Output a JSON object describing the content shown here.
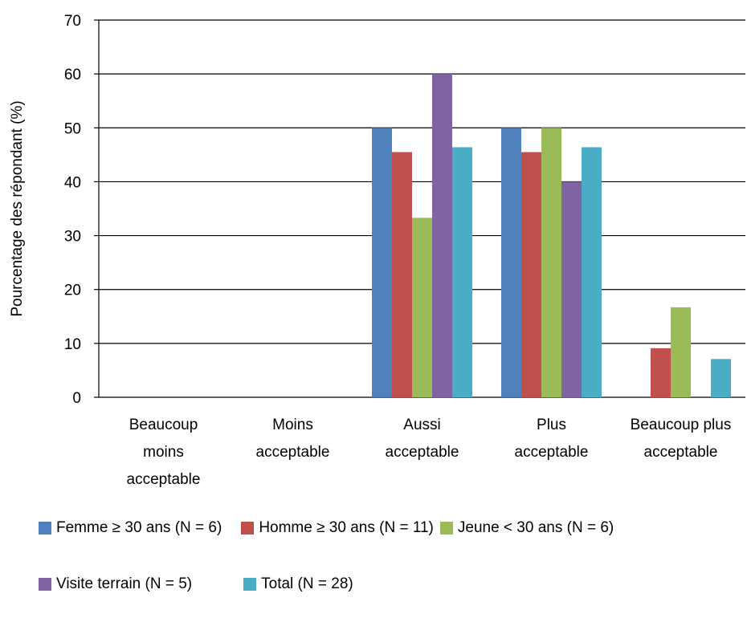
{
  "chart_data": {
    "type": "bar",
    "title": "",
    "xlabel": "",
    "ylabel": "Pourcentage des répondant (%)",
    "ylim": [
      0,
      70
    ],
    "yticks": [
      0,
      10,
      20,
      30,
      40,
      50,
      60,
      70
    ],
    "grid": true,
    "legend_position": "bottom",
    "categories": [
      [
        "Beaucoup",
        "moins",
        "acceptable"
      ],
      [
        "Moins",
        "acceptable"
      ],
      [
        "Aussi",
        "acceptable"
      ],
      [
        "Plus",
        "acceptable"
      ],
      [
        "Beaucoup plus",
        "acceptable"
      ]
    ],
    "series": [
      {
        "name": "Femme ≥ 30 ans (N = 6)",
        "color": "#4F81BD",
        "values": [
          0,
          0,
          50,
          50,
          0
        ]
      },
      {
        "name": "Homme ≥ 30 ans (N = 11)",
        "color": "#C0504D",
        "values": [
          0,
          0,
          45.5,
          45.5,
          9.1
        ]
      },
      {
        "name": "Jeune < 30 ans (N = 6)",
        "color": "#9BBB59",
        "values": [
          0,
          0,
          33.3,
          50,
          16.7
        ]
      },
      {
        "name": "Visite terrain (N = 5)",
        "color": "#8064A2",
        "values": [
          0,
          0,
          60,
          40,
          0
        ]
      },
      {
        "name": "Total (N = 28)",
        "color": "#4BACC6",
        "values": [
          0,
          0,
          46.4,
          46.4,
          7.1
        ]
      }
    ]
  }
}
